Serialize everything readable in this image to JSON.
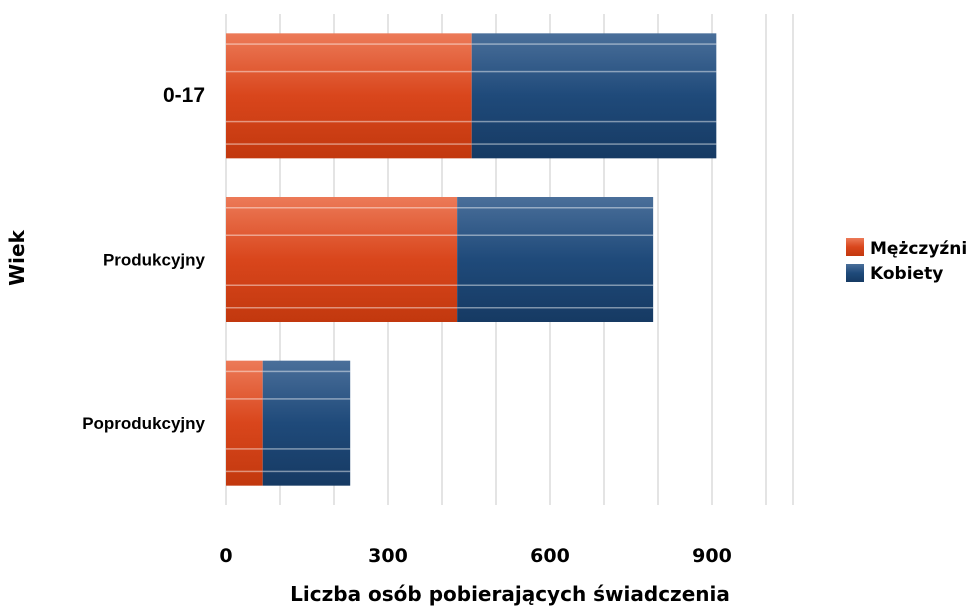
{
  "chart_data": {
    "type": "bar",
    "orientation": "horizontal",
    "stacked": true,
    "categories": [
      "0-17",
      "Produkcyjny",
      "Poprodukcyjny"
    ],
    "series": [
      {
        "name": "Mężczyźni",
        "values": [
          455,
          428,
          68
        ],
        "color": "#d9461c"
      },
      {
        "name": "Kobiety",
        "values": [
          453,
          363,
          162
        ],
        "color": "#1f4a7a"
      }
    ],
    "x_ticks": [
      "0",
      "300",
      "600",
      "900"
    ],
    "xlim": [
      0,
      1050
    ],
    "xlabel": "Liczba osób pobierających świadczenia",
    "ylabel": "Wiek",
    "grid": true,
    "legend_position": "right"
  }
}
